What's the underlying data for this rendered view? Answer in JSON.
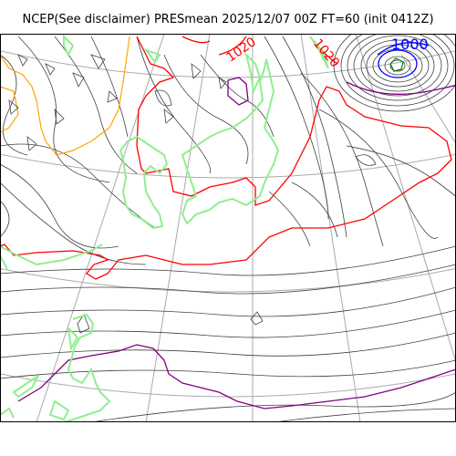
{
  "figure": {
    "title": "NCEP(See disclaimer) PRESmean 2025/12/07 00Z FT=60 (init 0412Z)"
  },
  "contour_labels": {
    "low": "1000",
    "high_a": "1020",
    "high_b": "1020"
  },
  "colors": {
    "isobar": "#404040",
    "isobar_1020": "#ff0000",
    "isobar_1000": "#0000ff",
    "isobar_1030": "#800080",
    "isobar_1010": "#ffa500",
    "isobar_990": "#008000",
    "coastline": "#90ee90",
    "graticule": "#aaaaaa"
  }
}
